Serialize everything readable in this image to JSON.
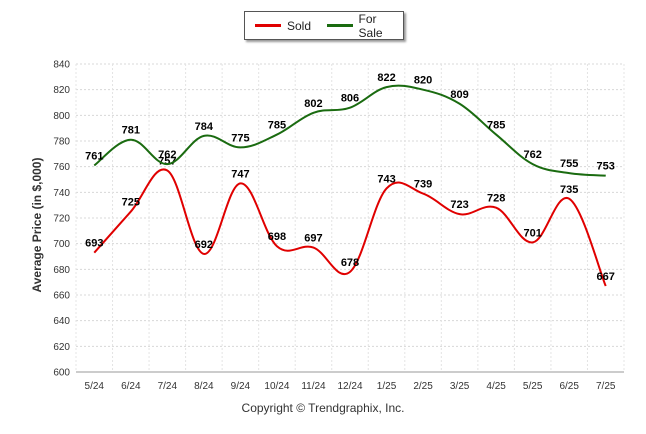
{
  "chart_data": {
    "type": "line",
    "categories": [
      "5/24",
      "6/24",
      "7/24",
      "8/24",
      "9/24",
      "10/24",
      "11/24",
      "12/24",
      "1/25",
      "2/25",
      "3/25",
      "4/25",
      "5/25",
      "6/25",
      "7/25"
    ],
    "series": [
      {
        "name": "Sold",
        "color": "#e00000",
        "values": [
          693,
          725,
          757,
          692,
          747,
          698,
          697,
          678,
          743,
          739,
          723,
          728,
          701,
          735,
          667
        ]
      },
      {
        "name": "For Sale",
        "color": "#1a6b10",
        "values": [
          761,
          781,
          762,
          784,
          775,
          785,
          802,
          806,
          822,
          820,
          809,
          785,
          762,
          755,
          753
        ]
      }
    ],
    "ylabel": "Average Price (in $,000)",
    "ylim": [
      600,
      840
    ],
    "yticks": [
      600,
      620,
      640,
      660,
      680,
      700,
      720,
      740,
      760,
      780,
      800,
      820,
      840
    ],
    "grid": true,
    "legend": "top-center"
  },
  "footer": {
    "copyright": "Copyright © Trendgraphix, Inc."
  }
}
